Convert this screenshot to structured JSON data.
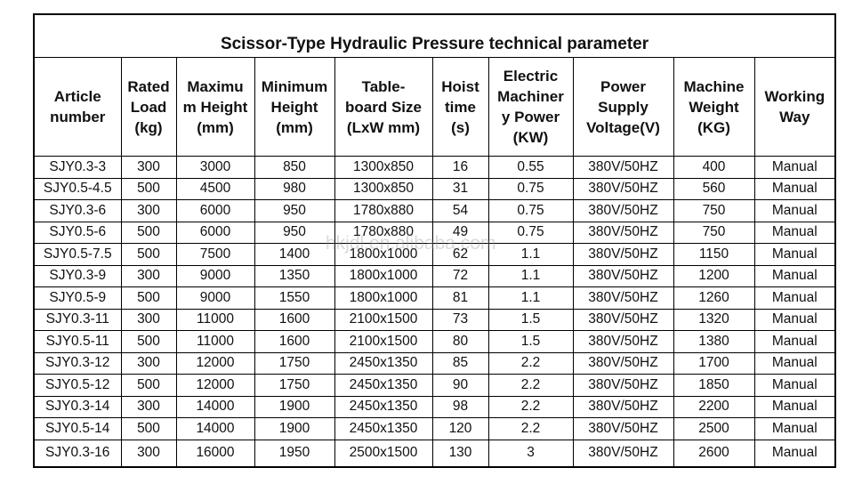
{
  "table": {
    "title": "Scissor-Type Hydraulic Pressure technical parameter",
    "header": [
      [
        "Article",
        "number"
      ],
      [
        "Rated",
        "Load",
        "(kg)"
      ],
      [
        "Maximu",
        "m Height",
        "(mm)"
      ],
      [
        "Minimum",
        "Height",
        "(mm)"
      ],
      [
        "Table-",
        "board Size",
        "(LxW mm)"
      ],
      [
        "Hoist",
        "time",
        "(s)"
      ],
      [
        "Electric",
        "Machiner",
        "y Power",
        "(KW)"
      ],
      [
        "Power",
        "Supply",
        "Voltage(V)"
      ],
      [
        "Machine",
        "Weight",
        "(KG)"
      ],
      [
        "Working",
        "Way"
      ]
    ],
    "rows": [
      [
        "SJY0.3-3",
        "300",
        "3000",
        "850",
        "1300x850",
        "16",
        "0.55",
        "380V/50HZ",
        "400",
        "Manual"
      ],
      [
        "SJY0.5-4.5",
        "500",
        "4500",
        "980",
        "1300x850",
        "31",
        "0.75",
        "380V/50HZ",
        "560",
        "Manual"
      ],
      [
        "SJY0.3-6",
        "300",
        "6000",
        "950",
        "1780x880",
        "54",
        "0.75",
        "380V/50HZ",
        "750",
        "Manual"
      ],
      [
        "SJY0.5-6",
        "500",
        "6000",
        "950",
        "1780x880",
        "49",
        "0.75",
        "380V/50HZ",
        "750",
        "Manual"
      ],
      [
        "SJY0.5-7.5",
        "500",
        "7500",
        "1400",
        "1800x1000",
        "62",
        "1.1",
        "380V/50HZ",
        "1150",
        "Manual"
      ],
      [
        "SJY0.3-9",
        "300",
        "9000",
        "1350",
        "1800x1000",
        "72",
        "1.1",
        "380V/50HZ",
        "1200",
        "Manual"
      ],
      [
        "SJY0.5-9",
        "500",
        "9000",
        "1550",
        "1800x1000",
        "81",
        "1.1",
        "380V/50HZ",
        "1260",
        "Manual"
      ],
      [
        "SJY0.3-11",
        "300",
        "11000",
        "1600",
        "2100x1500",
        "73",
        "1.5",
        "380V/50HZ",
        "1320",
        "Manual"
      ],
      [
        "SJY0.5-11",
        "500",
        "11000",
        "1600",
        "2100x1500",
        "80",
        "1.5",
        "380V/50HZ",
        "1380",
        "Manual"
      ],
      [
        "SJY0.3-12",
        "300",
        "12000",
        "1750",
        "2450x1350",
        "85",
        "2.2",
        "380V/50HZ",
        "1700",
        "Manual"
      ],
      [
        "SJY0.5-12",
        "500",
        "12000",
        "1750",
        "2450x1350",
        "90",
        "2.2",
        "380V/50HZ",
        "1850",
        "Manual"
      ],
      [
        "SJY0.3-14",
        "300",
        "14000",
        "1900",
        "2450x1350",
        "98",
        "2.2",
        "380V/50HZ",
        "2200",
        "Manual"
      ],
      [
        "SJY0.5-14",
        "500",
        "14000",
        "1900",
        "2450x1350",
        "120",
        "2.2",
        "380V/50HZ",
        "2500",
        "Manual"
      ],
      [
        "SJY0.3-16",
        "300",
        "16000",
        "1950",
        "2500x1500",
        "130",
        "3",
        "380V/50HZ",
        "2600",
        "Manual"
      ]
    ],
    "watermark": "hkjdl.en.alibaba.com"
  }
}
